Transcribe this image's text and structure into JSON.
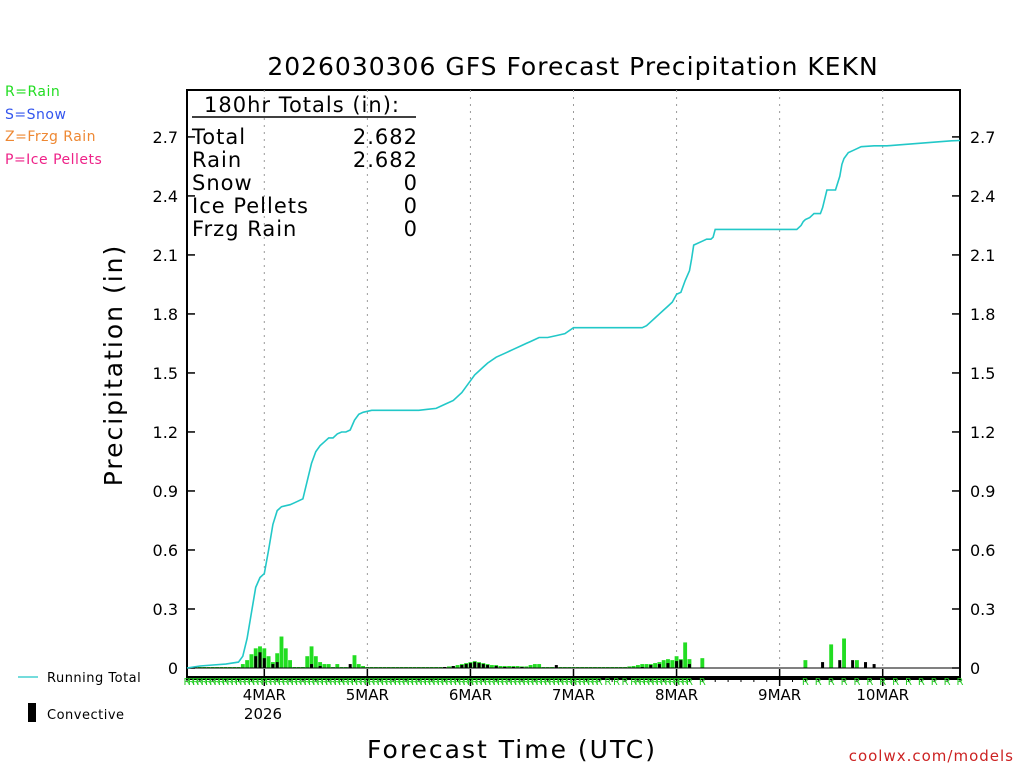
{
  "colors": {
    "rain": "#22dd22",
    "snow": "#3355ee",
    "frzg": "#ee8833",
    "ice": "#ee2288",
    "total_line": "#22c8c8",
    "convective": "#000000",
    "credit": "#cc2222"
  },
  "legend": {
    "rain": "R=Rain",
    "snow": "S=Snow",
    "frzg": "Z=Frzg Rain",
    "ice": "P=Ice Pellets",
    "running_total": "Running Total",
    "convective": "Convective"
  },
  "totals": {
    "header": "180hr Totals (in):",
    "rows": [
      {
        "label": "Total",
        "value": "2.682"
      },
      {
        "label": "Rain",
        "value": "2.682"
      },
      {
        "label": "Snow",
        "value": "0"
      },
      {
        "label": "Ice Pellets",
        "value": "0"
      },
      {
        "label": "Frzg Rain",
        "value": "0"
      }
    ]
  },
  "credit": "coolwx.com/models",
  "chart_data": {
    "type": "line",
    "title": "2026030306 GFS Forecast Precipitation KEKN",
    "xlabel": "Forecast Time (UTC)",
    "ylabel": "Precipitation (in)",
    "ylim": [
      0,
      3.0
    ],
    "y_ticks": [
      0,
      0.3,
      0.6,
      0.9,
      1.2,
      1.5,
      1.8,
      2.1,
      2.4,
      2.7
    ],
    "y_tick_labels": [
      "0",
      "0.3",
      "0.6",
      "0.9",
      "1.2",
      "1.5",
      "1.8",
      "2.1",
      "2.4",
      "2.7"
    ],
    "x_range_hours": [
      0,
      180
    ],
    "x_ticks": [
      {
        "hour": 18,
        "label": "4MAR"
      },
      {
        "hour": 42,
        "label": "5MAR"
      },
      {
        "hour": 66,
        "label": "6MAR"
      },
      {
        "hour": 90,
        "label": "7MAR"
      },
      {
        "hour": 114,
        "label": "8MAR"
      },
      {
        "hour": 138,
        "label": "9MAR"
      },
      {
        "hour": 162,
        "label": "10MAR"
      }
    ],
    "year_label": "2026",
    "series": [
      {
        "name": "Running Total",
        "x": [
          0,
          3,
          6,
          9,
          12,
          13,
          14,
          15,
          16,
          17,
          18,
          19,
          20,
          21,
          22,
          23,
          24,
          25,
          26,
          27,
          28,
          29,
          30,
          31,
          32,
          33,
          34,
          35,
          36,
          37,
          38,
          39,
          40,
          41,
          42,
          43,
          44,
          45,
          46,
          48,
          50,
          52,
          54,
          56,
          58,
          60,
          62,
          63,
          64,
          65,
          66,
          67,
          68,
          69,
          70,
          72,
          74,
          76,
          78,
          79,
          80,
          81,
          82,
          84,
          86,
          88,
          90,
          92,
          94,
          96,
          98,
          100,
          102,
          103,
          104,
          105,
          106,
          107,
          108,
          109,
          110,
          111,
          112,
          113,
          114,
          115,
          116,
          117,
          117.5,
          118,
          120,
          121,
          122,
          122.5,
          123,
          126,
          129,
          132,
          135,
          138,
          139,
          140,
          141,
          142,
          143,
          143.5,
          144,
          145,
          146,
          147,
          147.5,
          148,
          149,
          150,
          151,
          152,
          152.5,
          153,
          154,
          155,
          156,
          157,
          160,
          163,
          166,
          169,
          172,
          175,
          178,
          180
        ],
        "values": [
          0.0,
          0.01,
          0.015,
          0.02,
          0.03,
          0.06,
          0.15,
          0.28,
          0.41,
          0.46,
          0.48,
          0.6,
          0.73,
          0.8,
          0.82,
          0.825,
          0.83,
          0.84,
          0.85,
          0.86,
          0.95,
          1.04,
          1.1,
          1.13,
          1.15,
          1.17,
          1.17,
          1.19,
          1.2,
          1.2,
          1.21,
          1.26,
          1.29,
          1.3,
          1.305,
          1.31,
          1.31,
          1.31,
          1.31,
          1.31,
          1.31,
          1.31,
          1.31,
          1.315,
          1.32,
          1.34,
          1.36,
          1.38,
          1.4,
          1.43,
          1.46,
          1.49,
          1.51,
          1.53,
          1.55,
          1.58,
          1.6,
          1.62,
          1.64,
          1.65,
          1.66,
          1.67,
          1.68,
          1.68,
          1.69,
          1.7,
          1.73,
          1.73,
          1.73,
          1.73,
          1.73,
          1.73,
          1.73,
          1.73,
          1.73,
          1.73,
          1.73,
          1.74,
          1.76,
          1.78,
          1.8,
          1.82,
          1.84,
          1.86,
          1.9,
          1.91,
          1.97,
          2.02,
          2.08,
          2.15,
          2.17,
          2.18,
          2.18,
          2.19,
          2.23,
          2.23,
          2.23,
          2.23,
          2.23,
          2.23,
          2.23,
          2.23,
          2.23,
          2.23,
          2.25,
          2.27,
          2.28,
          2.29,
          2.31,
          2.31,
          2.31,
          2.34,
          2.43,
          2.43,
          2.43,
          2.5,
          2.56,
          2.59,
          2.62,
          2.63,
          2.64,
          2.65,
          2.655,
          2.655,
          2.66,
          2.665,
          2.67,
          2.675,
          2.68,
          2.682
        ]
      },
      {
        "name": "Rain (per period)",
        "x": [
          1,
          2,
          3,
          4,
          5,
          6,
          7,
          8,
          9,
          10,
          11,
          12,
          13,
          14,
          15,
          16,
          17,
          18,
          19,
          20,
          21,
          22,
          23,
          24,
          25,
          26,
          27,
          28,
          29,
          30,
          31,
          32,
          33,
          34,
          35,
          36,
          37,
          38,
          39,
          40,
          41,
          42,
          43,
          44,
          45,
          46,
          47,
          48,
          49,
          50,
          51,
          52,
          53,
          54,
          55,
          56,
          57,
          58,
          59,
          60,
          61,
          62,
          63,
          64,
          65,
          66,
          67,
          68,
          69,
          70,
          71,
          72,
          73,
          74,
          75,
          76,
          77,
          78,
          79,
          80,
          81,
          82,
          83,
          84,
          85,
          86,
          87,
          88,
          89,
          90,
          91,
          92,
          93,
          94,
          95,
          96,
          97,
          98,
          99,
          100,
          101,
          102,
          103,
          104,
          105,
          106,
          107,
          108,
          109,
          110,
          111,
          112,
          113,
          114,
          115,
          116,
          117,
          120,
          144,
          150,
          153,
          156
        ],
        "values": [
          0.002,
          0.002,
          0.002,
          0.002,
          0.002,
          0.002,
          0.002,
          0.002,
          0.002,
          0.002,
          0.002,
          0.004,
          0.02,
          0.04,
          0.07,
          0.1,
          0.11,
          0.1,
          0.06,
          0.03,
          0.075,
          0.16,
          0.1,
          0.04,
          0.005,
          0.005,
          0.005,
          0.06,
          0.11,
          0.06,
          0.03,
          0.02,
          0.02,
          0.005,
          0.02,
          0.005,
          0.005,
          0.005,
          0.065,
          0.02,
          0.01,
          0.005,
          0.005,
          0.005,
          0.005,
          0.005,
          0.005,
          0.005,
          0.005,
          0.005,
          0.005,
          0.005,
          0.005,
          0.005,
          0.005,
          0.005,
          0.005,
          0.005,
          0.005,
          0.005,
          0.008,
          0.01,
          0.015,
          0.02,
          0.025,
          0.03,
          0.035,
          0.03,
          0.025,
          0.02,
          0.015,
          0.015,
          0.01,
          0.01,
          0.01,
          0.01,
          0.01,
          0.008,
          0.008,
          0.015,
          0.02,
          0.02,
          0.005,
          0.005,
          0.005,
          0.005,
          0.005,
          0.005,
          0.005,
          0.005,
          0.005,
          0.005,
          0.005,
          0.005,
          0.005,
          0.005,
          0.005,
          0.005,
          0.005,
          0.005,
          0.005,
          0.005,
          0.008,
          0.01,
          0.015,
          0.02,
          0.02,
          0.02,
          0.025,
          0.03,
          0.04,
          0.045,
          0.04,
          0.06,
          0.045,
          0.13,
          0.045,
          0.05,
          0.04,
          0.12,
          0.15,
          0.04
        ]
      },
      {
        "name": "Convective",
        "x": [
          16,
          17,
          18,
          20,
          21,
          29,
          31,
          38,
          60,
          62,
          64,
          65,
          66,
          67,
          68,
          69,
          70,
          72,
          74,
          76,
          78,
          86,
          106,
          108,
          110,
          112,
          114,
          115,
          117,
          148,
          152,
          155,
          158,
          160
        ],
        "values": [
          0.06,
          0.08,
          0.05,
          0.02,
          0.03,
          0.02,
          0.01,
          0.02,
          0.005,
          0.01,
          0.015,
          0.02,
          0.025,
          0.03,
          0.025,
          0.02,
          0.015,
          0.01,
          0.005,
          0.005,
          0.005,
          0.015,
          0.005,
          0.015,
          0.02,
          0.025,
          0.035,
          0.04,
          0.02,
          0.03,
          0.04,
          0.04,
          0.03,
          0.02
        ]
      }
    ],
    "ptype_flags": {
      "label": "R",
      "hours": [
        0,
        1,
        2,
        3,
        4,
        5,
        6,
        7,
        8,
        9,
        10,
        11,
        12,
        13,
        14,
        15,
        16,
        17,
        18,
        19,
        20,
        21,
        22,
        23,
        24,
        25,
        26,
        27,
        28,
        29,
        30,
        31,
        32,
        33,
        34,
        35,
        36,
        37,
        38,
        39,
        40,
        41,
        42,
        43,
        44,
        45,
        46,
        47,
        48,
        49,
        50,
        51,
        52,
        53,
        54,
        55,
        56,
        57,
        58,
        59,
        60,
        61,
        62,
        63,
        64,
        65,
        66,
        67,
        68,
        69,
        70,
        71,
        72,
        73,
        74,
        75,
        76,
        77,
        78,
        79,
        80,
        81,
        82,
        83,
        84,
        85,
        86,
        87,
        88,
        89,
        90,
        91,
        92,
        93,
        94,
        95,
        96,
        98,
        100,
        102,
        104,
        105,
        106,
        107,
        108,
        109,
        110,
        111,
        112,
        113,
        114,
        115,
        116,
        117,
        120,
        144,
        147,
        150,
        153,
        156,
        159,
        162,
        165,
        168,
        171,
        174,
        177,
        180
      ]
    }
  }
}
